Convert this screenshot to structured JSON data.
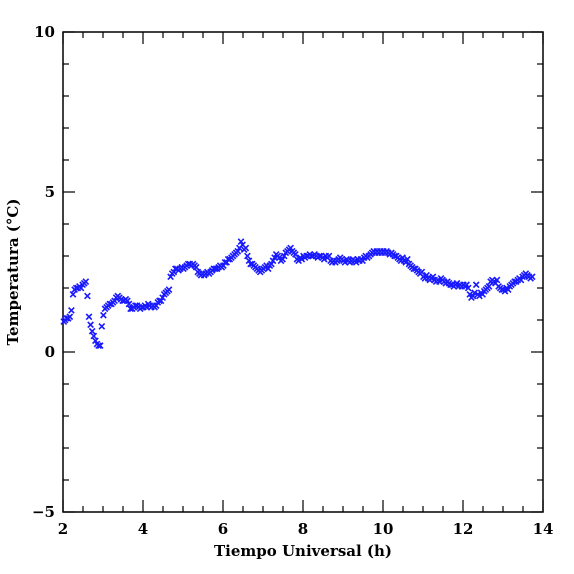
{
  "chart_data": {
    "type": "scatter",
    "xlabel": "Tiempo Universal (h)",
    "ylabel": "Temperatura (°C)",
    "xlim": [
      2,
      14
    ],
    "ylim": [
      -5,
      10
    ],
    "x_ticks": [
      2,
      4,
      6,
      8,
      10,
      12,
      14
    ],
    "y_ticks": [
      -5,
      0,
      5,
      10
    ],
    "grid": false,
    "legend": "none",
    "marker": "x",
    "marker_color": "#1a1aff",
    "series": [
      {
        "points": [
          [
            2.02,
            0.95
          ],
          [
            2.05,
            1.0
          ],
          [
            2.09,
            1.05
          ],
          [
            2.13,
            1.05
          ],
          [
            2.17,
            1.1
          ],
          [
            2.21,
            1.3
          ],
          [
            2.25,
            1.8
          ],
          [
            2.29,
            1.95
          ],
          [
            2.33,
            2.0
          ],
          [
            2.37,
            2.0
          ],
          [
            2.41,
            2.05
          ],
          [
            2.45,
            2.0
          ],
          [
            2.49,
            2.1
          ],
          [
            2.53,
            2.15
          ],
          [
            2.57,
            2.2
          ],
          [
            2.61,
            1.75
          ],
          [
            2.65,
            1.1
          ],
          [
            2.69,
            0.85
          ],
          [
            2.73,
            0.65
          ],
          [
            2.77,
            0.5
          ],
          [
            2.81,
            0.35
          ],
          [
            2.85,
            0.25
          ],
          [
            2.89,
            0.2
          ],
          [
            2.93,
            0.2
          ],
          [
            2.97,
            0.8
          ],
          [
            3.01,
            1.15
          ],
          [
            3.05,
            1.35
          ],
          [
            3.09,
            1.4
          ],
          [
            3.13,
            1.45
          ],
          [
            3.17,
            1.5
          ],
          [
            3.21,
            1.5
          ],
          [
            3.25,
            1.55
          ],
          [
            3.29,
            1.6
          ],
          [
            3.33,
            1.7
          ],
          [
            3.37,
            1.75
          ],
          [
            3.41,
            1.7
          ],
          [
            3.45,
            1.65
          ],
          [
            3.49,
            1.6
          ],
          [
            3.53,
            1.6
          ],
          [
            3.57,
            1.65
          ],
          [
            3.61,
            1.6
          ],
          [
            3.65,
            1.5
          ],
          [
            3.69,
            1.35
          ],
          [
            3.73,
            1.35
          ],
          [
            3.77,
            1.4
          ],
          [
            3.81,
            1.45
          ],
          [
            3.85,
            1.45
          ],
          [
            3.89,
            1.4
          ],
          [
            3.93,
            1.35
          ],
          [
            3.97,
            1.4
          ],
          [
            4.01,
            1.4
          ],
          [
            4.05,
            1.45
          ],
          [
            4.09,
            1.4
          ],
          [
            4.13,
            1.5
          ],
          [
            4.17,
            1.45
          ],
          [
            4.21,
            1.4
          ],
          [
            4.25,
            1.45
          ],
          [
            4.29,
            1.4
          ],
          [
            4.33,
            1.45
          ],
          [
            4.37,
            1.55
          ],
          [
            4.41,
            1.6
          ],
          [
            4.45,
            1.6
          ],
          [
            4.49,
            1.7
          ],
          [
            4.53,
            1.8
          ],
          [
            4.57,
            1.85
          ],
          [
            4.61,
            1.9
          ],
          [
            4.65,
            1.95
          ],
          [
            4.69,
            2.35
          ],
          [
            4.73,
            2.45
          ],
          [
            4.77,
            2.5
          ],
          [
            4.81,
            2.6
          ],
          [
            4.85,
            2.6
          ],
          [
            4.89,
            2.55
          ],
          [
            4.93,
            2.6
          ],
          [
            4.97,
            2.65
          ],
          [
            5.01,
            2.6
          ],
          [
            5.05,
            2.65
          ],
          [
            5.09,
            2.7
          ],
          [
            5.13,
            2.75
          ],
          [
            5.17,
            2.75
          ],
          [
            5.21,
            2.7
          ],
          [
            5.25,
            2.75
          ],
          [
            5.29,
            2.7
          ],
          [
            5.33,
            2.65
          ],
          [
            5.37,
            2.5
          ],
          [
            5.41,
            2.45
          ],
          [
            5.45,
            2.4
          ],
          [
            5.49,
            2.45
          ],
          [
            5.53,
            2.4
          ],
          [
            5.57,
            2.45
          ],
          [
            5.61,
            2.5
          ],
          [
            5.65,
            2.45
          ],
          [
            5.69,
            2.5
          ],
          [
            5.73,
            2.55
          ],
          [
            5.77,
            2.6
          ],
          [
            5.81,
            2.6
          ],
          [
            5.85,
            2.6
          ],
          [
            5.89,
            2.65
          ],
          [
            5.93,
            2.7
          ],
          [
            5.97,
            2.65
          ],
          [
            6.01,
            2.7
          ],
          [
            6.05,
            2.8
          ],
          [
            6.09,
            2.8
          ],
          [
            6.13,
            2.9
          ],
          [
            6.17,
            2.9
          ],
          [
            6.21,
            2.95
          ],
          [
            6.25,
            3.0
          ],
          [
            6.29,
            3.05
          ],
          [
            6.33,
            3.1
          ],
          [
            6.37,
            3.15
          ],
          [
            6.41,
            3.25
          ],
          [
            6.45,
            3.45
          ],
          [
            6.49,
            3.35
          ],
          [
            6.53,
            3.2
          ],
          [
            6.57,
            3.25
          ],
          [
            6.61,
            3.0
          ],
          [
            6.65,
            2.85
          ],
          [
            6.69,
            2.75
          ],
          [
            6.73,
            2.75
          ],
          [
            6.77,
            2.7
          ],
          [
            6.81,
            2.65
          ],
          [
            6.85,
            2.6
          ],
          [
            6.89,
            2.55
          ],
          [
            6.93,
            2.5
          ],
          [
            6.97,
            2.55
          ],
          [
            7.01,
            2.6
          ],
          [
            7.05,
            2.65
          ],
          [
            7.09,
            2.7
          ],
          [
            7.13,
            2.6
          ],
          [
            7.17,
            2.7
          ],
          [
            7.21,
            2.75
          ],
          [
            7.25,
            2.85
          ],
          [
            7.29,
            2.95
          ],
          [
            7.33,
            3.05
          ],
          [
            7.37,
            3.0
          ],
          [
            7.41,
            2.95
          ],
          [
            7.45,
            2.85
          ],
          [
            7.49,
            2.9
          ],
          [
            7.53,
            3.0
          ],
          [
            7.57,
            3.1
          ],
          [
            7.61,
            3.15
          ],
          [
            7.65,
            3.2
          ],
          [
            7.69,
            3.25
          ],
          [
            7.73,
            3.15
          ],
          [
            7.77,
            3.1
          ],
          [
            7.81,
            3.05
          ],
          [
            7.85,
            2.9
          ],
          [
            7.89,
            2.85
          ],
          [
            7.93,
            2.95
          ],
          [
            7.97,
            2.9
          ],
          [
            8.01,
            3.0
          ],
          [
            8.05,
            2.95
          ],
          [
            8.09,
            3.0
          ],
          [
            8.13,
            3.0
          ],
          [
            8.17,
            3.05
          ],
          [
            8.21,
            3.0
          ],
          [
            8.25,
            3.0
          ],
          [
            8.29,
            3.05
          ],
          [
            8.33,
            3.0
          ],
          [
            8.37,
            2.95
          ],
          [
            8.41,
            3.0
          ],
          [
            8.45,
            3.0
          ],
          [
            8.49,
            2.95
          ],
          [
            8.53,
            2.9
          ],
          [
            8.57,
            3.0
          ],
          [
            8.61,
            2.95
          ],
          [
            8.65,
            3.0
          ],
          [
            8.69,
            2.85
          ],
          [
            8.73,
            2.8
          ],
          [
            8.77,
            2.85
          ],
          [
            8.81,
            2.8
          ],
          [
            8.85,
            2.85
          ],
          [
            8.89,
            2.9
          ],
          [
            8.93,
            2.95
          ],
          [
            8.97,
            2.9
          ],
          [
            9.01,
            2.85
          ],
          [
            9.05,
            2.8
          ],
          [
            9.09,
            2.9
          ],
          [
            9.13,
            2.85
          ],
          [
            9.17,
            2.8
          ],
          [
            9.21,
            2.85
          ],
          [
            9.25,
            2.9
          ],
          [
            9.29,
            2.85
          ],
          [
            9.33,
            2.8
          ],
          [
            9.37,
            2.9
          ],
          [
            9.41,
            2.85
          ],
          [
            9.45,
            2.9
          ],
          [
            9.49,
            2.85
          ],
          [
            9.53,
            2.95
          ],
          [
            9.57,
            3.0
          ],
          [
            9.61,
            2.95
          ],
          [
            9.65,
            3.0
          ],
          [
            9.69,
            3.05
          ],
          [
            9.73,
            3.1
          ],
          [
            9.77,
            3.15
          ],
          [
            9.81,
            3.1
          ],
          [
            9.85,
            3.15
          ],
          [
            9.89,
            3.1
          ],
          [
            9.93,
            3.15
          ],
          [
            9.97,
            3.1
          ],
          [
            10.01,
            3.15
          ],
          [
            10.05,
            3.1
          ],
          [
            10.09,
            3.15
          ],
          [
            10.13,
            3.1
          ],
          [
            10.17,
            3.05
          ],
          [
            10.21,
            3.1
          ],
          [
            10.25,
            3.05
          ],
          [
            10.29,
            3.0
          ],
          [
            10.33,
            3.0
          ],
          [
            10.37,
            2.95
          ],
          [
            10.41,
            2.9
          ],
          [
            10.45,
            2.85
          ],
          [
            10.49,
            2.95
          ],
          [
            10.53,
            2.85
          ],
          [
            10.57,
            2.8
          ],
          [
            10.61,
            2.9
          ],
          [
            10.65,
            2.75
          ],
          [
            10.69,
            2.7
          ],
          [
            10.73,
            2.65
          ],
          [
            10.77,
            2.6
          ],
          [
            10.81,
            2.6
          ],
          [
            10.85,
            2.55
          ],
          [
            10.89,
            2.5
          ],
          [
            10.93,
            2.45
          ],
          [
            10.97,
            2.5
          ],
          [
            11.01,
            2.35
          ],
          [
            11.05,
            2.3
          ],
          [
            11.09,
            2.4
          ],
          [
            11.13,
            2.3
          ],
          [
            11.17,
            2.25
          ],
          [
            11.21,
            2.3
          ],
          [
            11.25,
            2.35
          ],
          [
            11.29,
            2.25
          ],
          [
            11.33,
            2.2
          ],
          [
            11.37,
            2.25
          ],
          [
            11.41,
            2.2
          ],
          [
            11.45,
            2.3
          ],
          [
            11.49,
            2.25
          ],
          [
            11.53,
            2.2
          ],
          [
            11.57,
            2.15
          ],
          [
            11.61,
            2.2
          ],
          [
            11.65,
            2.15
          ],
          [
            11.69,
            2.1
          ],
          [
            11.73,
            2.1
          ],
          [
            11.77,
            2.05
          ],
          [
            11.81,
            2.1
          ],
          [
            11.85,
            2.15
          ],
          [
            11.89,
            2.05
          ],
          [
            11.93,
            2.1
          ],
          [
            11.97,
            2.05
          ],
          [
            12.01,
            2.1
          ],
          [
            12.05,
            2.05
          ],
          [
            12.09,
            2.1
          ],
          [
            12.13,
            2.0
          ],
          [
            12.17,
            1.8
          ],
          [
            12.21,
            1.7
          ],
          [
            12.25,
            1.75
          ],
          [
            12.29,
            1.85
          ],
          [
            12.33,
            2.1
          ],
          [
            12.37,
            1.8
          ],
          [
            12.41,
            1.75
          ],
          [
            12.45,
            1.85
          ],
          [
            12.49,
            1.8
          ],
          [
            12.53,
            1.9
          ],
          [
            12.57,
            1.95
          ],
          [
            12.61,
            2.0
          ],
          [
            12.65,
            2.05
          ],
          [
            12.69,
            2.2
          ],
          [
            12.73,
            2.25
          ],
          [
            12.77,
            2.2
          ],
          [
            12.81,
            2.15
          ],
          [
            12.85,
            2.25
          ],
          [
            12.89,
            2.05
          ],
          [
            12.93,
            2.0
          ],
          [
            12.97,
            1.95
          ],
          [
            13.01,
            1.95
          ],
          [
            13.05,
            1.9
          ],
          [
            13.09,
            2.0
          ],
          [
            13.13,
            1.95
          ],
          [
            13.17,
            2.05
          ],
          [
            13.21,
            2.1
          ],
          [
            13.25,
            2.15
          ],
          [
            13.29,
            2.2
          ],
          [
            13.33,
            2.2
          ],
          [
            13.37,
            2.25
          ],
          [
            13.41,
            2.3
          ],
          [
            13.45,
            2.25
          ],
          [
            13.49,
            2.35
          ],
          [
            13.53,
            2.4
          ],
          [
            13.57,
            2.45
          ],
          [
            13.61,
            2.4
          ],
          [
            13.65,
            2.35
          ],
          [
            13.69,
            2.3
          ],
          [
            13.73,
            2.35
          ]
        ]
      }
    ]
  }
}
